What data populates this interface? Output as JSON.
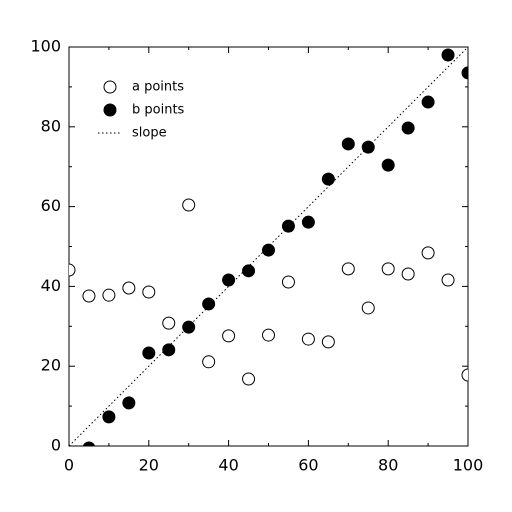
{
  "chart_data": {
    "type": "scatter",
    "xlim": [
      0,
      100
    ],
    "ylim": [
      0,
      100
    ],
    "xticks": [
      0,
      20,
      40,
      60,
      80,
      100
    ],
    "yticks": [
      0,
      20,
      40,
      60,
      80,
      100
    ],
    "xminorticks": [
      10,
      30,
      50,
      70,
      90
    ],
    "yminorticks": [
      10,
      30,
      50,
      70,
      90
    ],
    "legend": "upper left",
    "series": [
      {
        "name": "a points",
        "color": "#000000",
        "marker": "open",
        "x": [
          0,
          5,
          10,
          15,
          20,
          25,
          30,
          35,
          40,
          45,
          50,
          55,
          60,
          65,
          70,
          75,
          80,
          85,
          90,
          95,
          100
        ],
        "values": [
          44.1,
          37.6,
          37.8,
          39.6,
          38.6,
          30.8,
          60.4,
          21.1,
          27.6,
          16.8,
          27.8,
          41.1,
          26.8,
          26.1,
          44.4,
          34.6,
          44.4,
          43.1,
          48.4,
          41.6,
          17.8
        ]
      },
      {
        "name": "b points",
        "color": "#000000",
        "marker": "filled",
        "x": [
          5,
          10,
          15,
          20,
          25,
          30,
          35,
          40,
          45,
          50,
          55,
          60,
          65,
          70,
          75,
          80,
          85,
          90,
          95,
          100
        ],
        "values": [
          -0.5,
          7.3,
          10.8,
          23.3,
          24.1,
          29.8,
          35.6,
          41.6,
          43.9,
          49.1,
          55.1,
          56.1,
          66.9,
          75.7,
          74.9,
          70.4,
          79.7,
          86.2,
          98.0,
          93.5
        ]
      },
      {
        "name": "slope",
        "color": "#000000",
        "style": "dotted",
        "x": [
          0,
          100
        ],
        "values": [
          0,
          100
        ]
      }
    ]
  }
}
